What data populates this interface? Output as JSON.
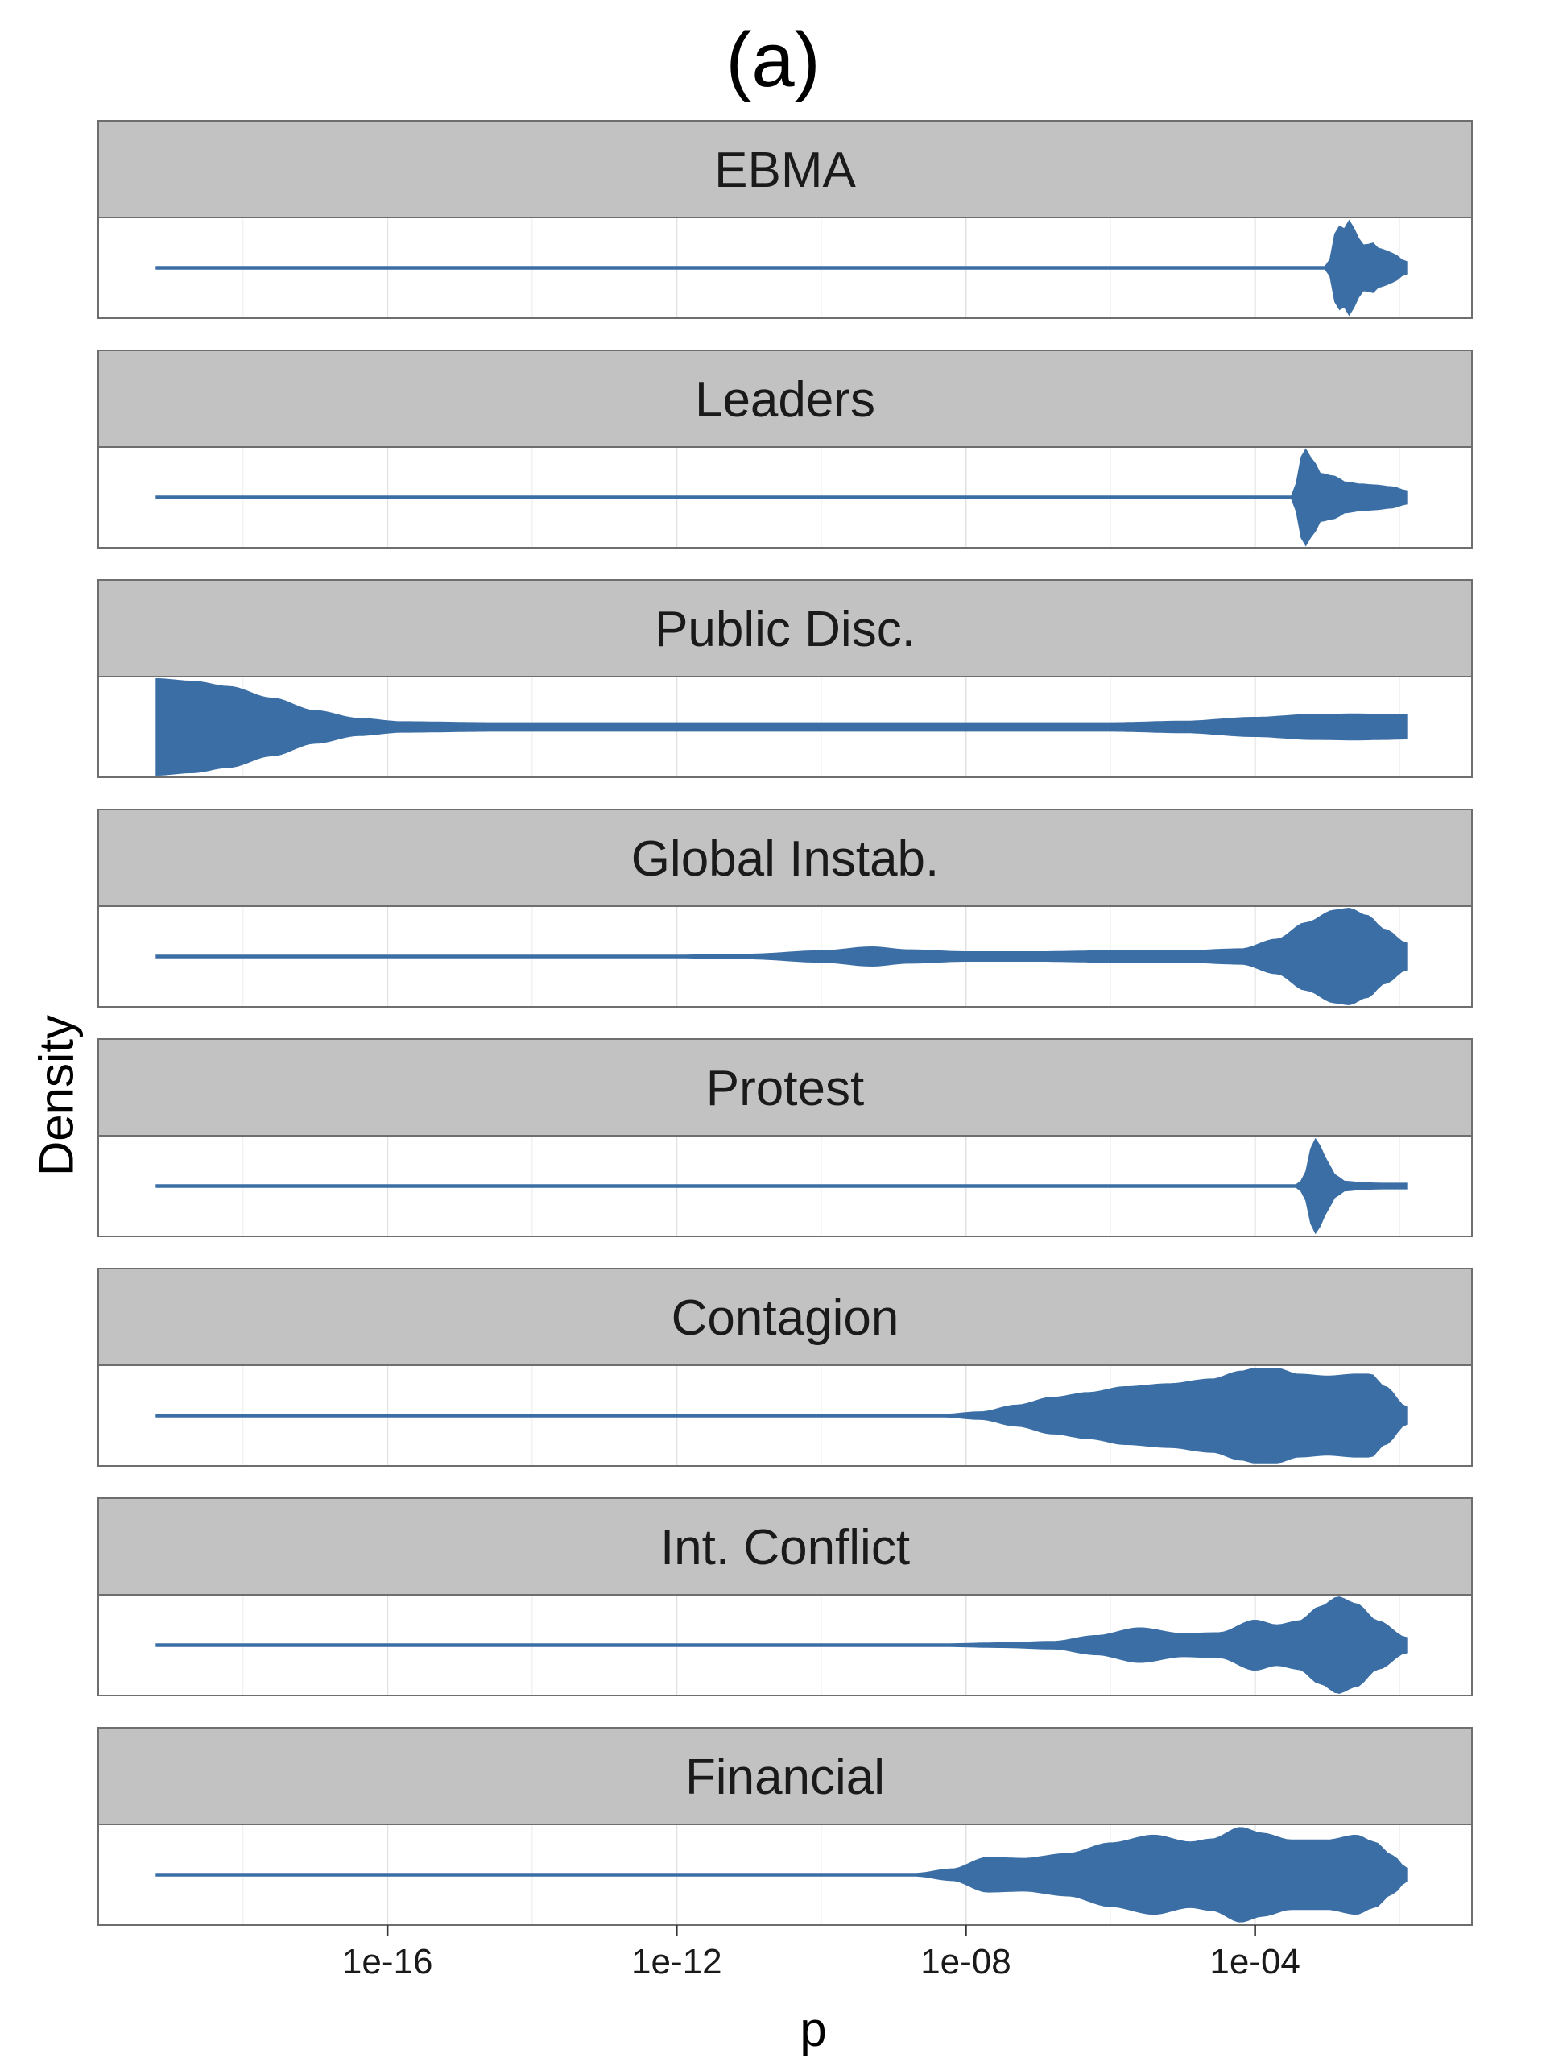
{
  "title": "(a)",
  "chart_data": {
    "type": "violin",
    "title": "(a)",
    "xlabel": "p",
    "ylabel": "Density",
    "x_scale": "log10",
    "x_ticks": [
      1e-16,
      1e-12,
      1e-08,
      0.0001
    ],
    "x_tick_labels": [
      "1e-16",
      "1e-12",
      "1e-08",
      "1e-04"
    ],
    "xlim": [
      1e-20,
      0.1
    ],
    "grid": true,
    "color": "#3b6ea5",
    "panels": [
      {
        "name": "EBMA",
        "min_log10_p": -19.2,
        "max_log10_p": -1.9,
        "density": [
          [
            -19.2,
            0.03
          ],
          [
            -3.0,
            0.03
          ],
          [
            -2.97,
            0.16
          ],
          [
            -2.92,
            0.65
          ],
          [
            -2.85,
            0.88
          ],
          [
            -2.78,
            0.8
          ],
          [
            -2.68,
            1.0
          ],
          [
            -2.58,
            0.62
          ],
          [
            -2.48,
            0.46
          ],
          [
            -2.38,
            0.52
          ],
          [
            -2.28,
            0.4
          ],
          [
            -2.15,
            0.34
          ],
          [
            -2.05,
            0.26
          ],
          [
            -1.95,
            0.16
          ],
          [
            -1.9,
            0.13
          ]
        ]
      },
      {
        "name": "Leaders",
        "min_log10_p": -19.2,
        "max_log10_p": -1.9,
        "density": [
          [
            -19.2,
            0.03
          ],
          [
            -3.5,
            0.03
          ],
          [
            -3.45,
            0.16
          ],
          [
            -3.4,
            0.55
          ],
          [
            -3.35,
            0.9
          ],
          [
            -3.3,
            1.0
          ],
          [
            -3.2,
            0.78
          ],
          [
            -3.1,
            0.5
          ],
          [
            -2.9,
            0.44
          ],
          [
            -2.75,
            0.32
          ],
          [
            -2.55,
            0.28
          ],
          [
            -2.35,
            0.26
          ],
          [
            -2.1,
            0.22
          ],
          [
            -1.9,
            0.14
          ]
        ]
      },
      {
        "name": "Public Disc.",
        "min_log10_p": -19.2,
        "max_log10_p": -1.9,
        "density": [
          [
            -19.2,
            1.0
          ],
          [
            -18.7,
            0.95
          ],
          [
            -18.2,
            0.84
          ],
          [
            -17.6,
            0.6
          ],
          [
            -17.0,
            0.34
          ],
          [
            -16.4,
            0.18
          ],
          [
            -15.8,
            0.11
          ],
          [
            -14.5,
            0.09
          ],
          [
            -10.0,
            0.09
          ],
          [
            -6.0,
            0.09
          ],
          [
            -5.0,
            0.12
          ],
          [
            -4.0,
            0.2
          ],
          [
            -3.2,
            0.26
          ],
          [
            -2.6,
            0.27
          ],
          [
            -2.2,
            0.26
          ],
          [
            -1.9,
            0.25
          ]
        ]
      },
      {
        "name": "Global Instab.",
        "min_log10_p": -19.2,
        "max_log10_p": -1.9,
        "density": [
          [
            -19.2,
            0.03
          ],
          [
            -12.0,
            0.03
          ],
          [
            -11.0,
            0.05
          ],
          [
            -10.0,
            0.12
          ],
          [
            -9.3,
            0.2
          ],
          [
            -8.8,
            0.14
          ],
          [
            -8.0,
            0.1
          ],
          [
            -7.0,
            0.1
          ],
          [
            -6.0,
            0.12
          ],
          [
            -5.0,
            0.12
          ],
          [
            -4.2,
            0.16
          ],
          [
            -3.7,
            0.36
          ],
          [
            -3.3,
            0.7
          ],
          [
            -2.9,
            0.96
          ],
          [
            -2.7,
            1.0
          ],
          [
            -2.45,
            0.85
          ],
          [
            -2.2,
            0.56
          ],
          [
            -1.9,
            0.28
          ]
        ]
      },
      {
        "name": "Protest",
        "min_log10_p": -19.2,
        "max_log10_p": -1.9,
        "density": [
          [
            -19.2,
            0.03
          ],
          [
            -3.4,
            0.03
          ],
          [
            -3.3,
            0.3
          ],
          [
            -3.22,
            0.8
          ],
          [
            -3.15,
            1.0
          ],
          [
            -3.08,
            0.8
          ],
          [
            -3.0,
            0.5
          ],
          [
            -2.9,
            0.24
          ],
          [
            -2.75,
            0.1
          ],
          [
            -2.5,
            0.07
          ],
          [
            -2.2,
            0.06
          ],
          [
            -1.9,
            0.06
          ]
        ]
      },
      {
        "name": "Contagion",
        "min_log10_p": -19.2,
        "max_log10_p": -1.9,
        "density": [
          [
            -19.2,
            0.03
          ],
          [
            -8.3,
            0.03
          ],
          [
            -7.8,
            0.08
          ],
          [
            -7.3,
            0.22
          ],
          [
            -6.8,
            0.38
          ],
          [
            -6.3,
            0.48
          ],
          [
            -5.8,
            0.6
          ],
          [
            -5.2,
            0.66
          ],
          [
            -4.6,
            0.76
          ],
          [
            -4.2,
            0.92
          ],
          [
            -4.0,
            0.98
          ],
          [
            -3.7,
            0.98
          ],
          [
            -3.4,
            0.86
          ],
          [
            -3.0,
            0.82
          ],
          [
            -2.6,
            0.86
          ],
          [
            -2.4,
            0.86
          ],
          [
            -2.2,
            0.6
          ],
          [
            -1.9,
            0.18
          ]
        ]
      },
      {
        "name": "Int. Conflict",
        "min_log10_p": -19.2,
        "max_log10_p": -1.9,
        "density": [
          [
            -19.2,
            0.03
          ],
          [
            -8.3,
            0.03
          ],
          [
            -7.5,
            0.05
          ],
          [
            -6.8,
            0.08
          ],
          [
            -6.2,
            0.2
          ],
          [
            -5.6,
            0.36
          ],
          [
            -5.0,
            0.24
          ],
          [
            -4.5,
            0.26
          ],
          [
            -4.0,
            0.52
          ],
          [
            -3.7,
            0.42
          ],
          [
            -3.4,
            0.5
          ],
          [
            -3.1,
            0.8
          ],
          [
            -2.85,
            1.0
          ],
          [
            -2.6,
            0.86
          ],
          [
            -2.3,
            0.5
          ],
          [
            -1.9,
            0.16
          ]
        ]
      },
      {
        "name": "Financial",
        "min_log10_p": -19.2,
        "max_log10_p": -1.9,
        "density": [
          [
            -19.2,
            0.03
          ],
          [
            -8.7,
            0.03
          ],
          [
            -8.2,
            0.12
          ],
          [
            -7.7,
            0.36
          ],
          [
            -7.2,
            0.34
          ],
          [
            -6.6,
            0.44
          ],
          [
            -6.0,
            0.66
          ],
          [
            -5.4,
            0.82
          ],
          [
            -4.9,
            0.68
          ],
          [
            -4.6,
            0.74
          ],
          [
            -4.2,
            0.98
          ],
          [
            -3.9,
            0.86
          ],
          [
            -3.5,
            0.72
          ],
          [
            -3.0,
            0.72
          ],
          [
            -2.6,
            0.82
          ],
          [
            -2.35,
            0.68
          ],
          [
            -2.1,
            0.4
          ],
          [
            -1.9,
            0.14
          ]
        ]
      }
    ]
  }
}
